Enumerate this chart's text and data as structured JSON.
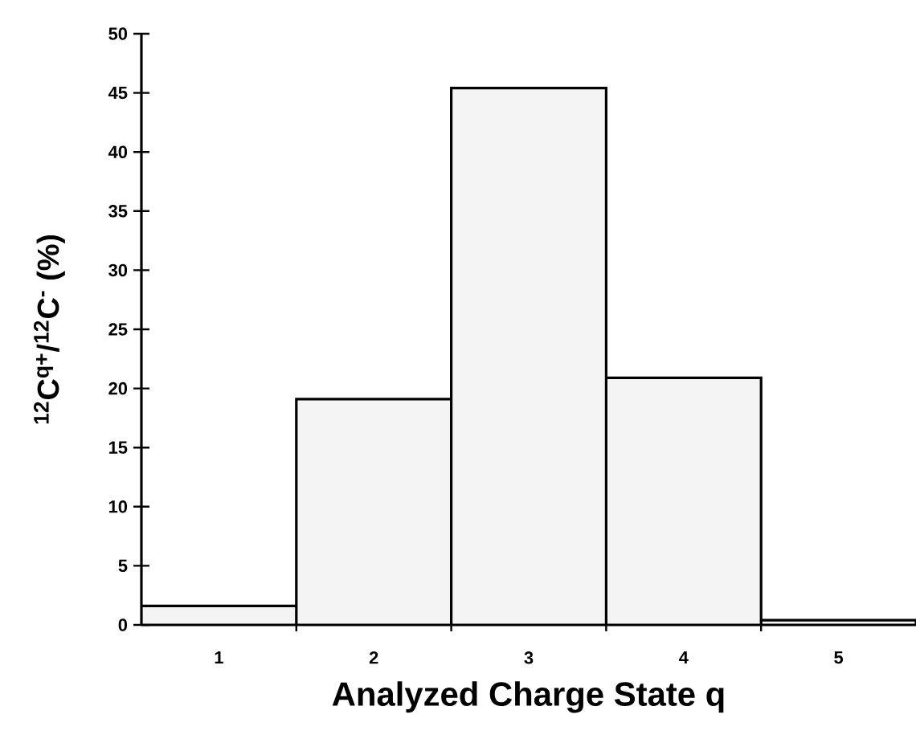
{
  "chart_data": {
    "type": "bar",
    "xlabel": "Analyzed Charge State q",
    "ylabel": "$^{12}$C$^{q+}$/$^{12}$C$^{-}$  (%)",
    "categories": [
      "1",
      "2",
      "3",
      "4",
      "5"
    ],
    "values": [
      1.6,
      19.1,
      45.4,
      20.9,
      0.4
    ],
    "color": "#f4f4f4",
    "ylim": [
      0,
      50
    ],
    "yticks": [
      0,
      5,
      10,
      15,
      20,
      25,
      30,
      35,
      40,
      45,
      50
    ],
    "grid": false
  }
}
